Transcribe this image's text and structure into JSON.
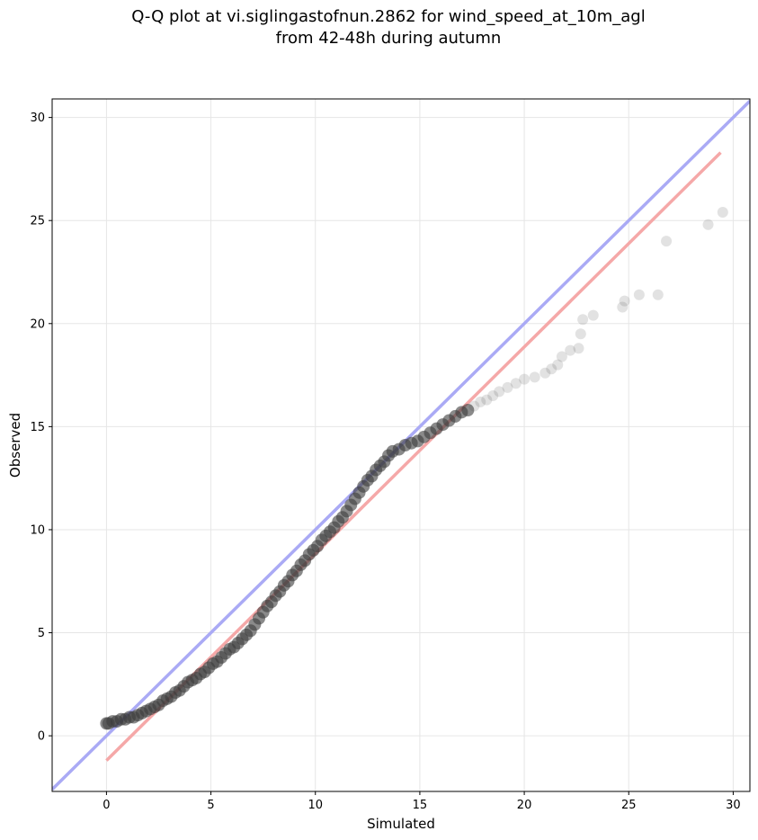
{
  "chart_data": {
    "type": "scatter",
    "title_lines": [
      "Q-Q plot at vi.siglingastofnun.2862 for wind_speed_at_10m_agl",
      "from 42-48h during autumn"
    ],
    "xlabel": "Simulated",
    "ylabel": "Observed",
    "xlim": [
      -2.6,
      30.8
    ],
    "ylim": [
      -2.7,
      30.9
    ],
    "xticks": [
      0,
      5,
      10,
      15,
      20,
      25,
      30
    ],
    "yticks": [
      0,
      5,
      10,
      15,
      20,
      25,
      30
    ],
    "grid": true,
    "reference_line": {
      "name": "1:1",
      "color": "#aaaaf5",
      "points": [
        [
          -2.6,
          -2.6
        ],
        [
          30.8,
          30.8
        ]
      ]
    },
    "fit_line": {
      "color": "#f5a8a8",
      "points": [
        [
          0.0,
          -1.2
        ],
        [
          29.4,
          28.3
        ]
      ]
    },
    "marker_color": "#3c3c3c",
    "series": [
      {
        "points": [
          [
            0.0,
            0.6
          ],
          [
            0.1,
            0.6
          ],
          [
            0.3,
            0.7
          ],
          [
            0.5,
            0.7
          ],
          [
            0.7,
            0.8
          ],
          [
            0.9,
            0.8
          ],
          [
            1.1,
            0.9
          ],
          [
            1.3,
            0.9
          ],
          [
            1.5,
            1.0
          ],
          [
            1.7,
            1.1
          ],
          [
            1.9,
            1.2
          ],
          [
            2.1,
            1.3
          ],
          [
            2.3,
            1.4
          ],
          [
            2.5,
            1.5
          ],
          [
            2.7,
            1.7
          ],
          [
            2.9,
            1.8
          ],
          [
            3.1,
            1.9
          ],
          [
            3.3,
            2.1
          ],
          [
            3.5,
            2.2
          ],
          [
            3.7,
            2.4
          ],
          [
            3.9,
            2.6
          ],
          [
            4.1,
            2.7
          ],
          [
            4.3,
            2.8
          ],
          [
            4.5,
            3.0
          ],
          [
            4.7,
            3.1
          ],
          [
            4.9,
            3.3
          ],
          [
            5.1,
            3.5
          ],
          [
            5.3,
            3.6
          ],
          [
            5.5,
            3.8
          ],
          [
            5.7,
            4.0
          ],
          [
            5.9,
            4.2
          ],
          [
            6.1,
            4.3
          ],
          [
            6.3,
            4.5
          ],
          [
            6.5,
            4.7
          ],
          [
            6.7,
            4.9
          ],
          [
            6.9,
            5.1
          ],
          [
            7.1,
            5.4
          ],
          [
            7.3,
            5.7
          ],
          [
            7.5,
            6.0
          ],
          [
            7.7,
            6.3
          ],
          [
            7.9,
            6.5
          ],
          [
            8.1,
            6.8
          ],
          [
            8.3,
            7.0
          ],
          [
            8.5,
            7.3
          ],
          [
            8.7,
            7.5
          ],
          [
            8.9,
            7.8
          ],
          [
            9.1,
            8.0
          ],
          [
            9.3,
            8.3
          ],
          [
            9.5,
            8.5
          ],
          [
            9.7,
            8.8
          ],
          [
            9.9,
            9.0
          ],
          [
            10.1,
            9.2
          ],
          [
            10.3,
            9.5
          ],
          [
            10.5,
            9.7
          ],
          [
            10.7,
            9.9
          ],
          [
            10.9,
            10.1
          ],
          [
            11.1,
            10.4
          ],
          [
            11.3,
            10.6
          ],
          [
            11.5,
            10.9
          ],
          [
            11.7,
            11.2
          ],
          [
            11.9,
            11.5
          ],
          [
            12.1,
            11.8
          ],
          [
            12.3,
            12.1
          ],
          [
            12.5,
            12.4
          ],
          [
            12.7,
            12.6
          ],
          [
            12.9,
            12.9
          ],
          [
            13.1,
            13.1
          ],
          [
            13.3,
            13.3
          ],
          [
            13.5,
            13.6
          ],
          [
            13.7,
            13.8
          ],
          [
            14.0,
            13.9
          ],
          [
            14.3,
            14.1
          ],
          [
            14.6,
            14.2
          ],
          [
            14.9,
            14.3
          ],
          [
            15.2,
            14.5
          ],
          [
            15.5,
            14.7
          ],
          [
            15.8,
            14.9
          ],
          [
            16.1,
            15.1
          ],
          [
            16.4,
            15.3
          ],
          [
            16.7,
            15.5
          ],
          [
            17.0,
            15.7
          ],
          [
            17.3,
            15.8
          ],
          [
            17.6,
            16.0
          ],
          [
            17.9,
            16.2
          ],
          [
            18.2,
            16.3
          ],
          [
            18.5,
            16.5
          ],
          [
            18.8,
            16.7
          ],
          [
            19.2,
            16.9
          ],
          [
            19.6,
            17.1
          ],
          [
            20.0,
            17.3
          ],
          [
            20.5,
            17.4
          ],
          [
            21.0,
            17.6
          ],
          [
            21.3,
            17.8
          ],
          [
            21.6,
            18.0
          ],
          [
            21.8,
            18.4
          ],
          [
            22.2,
            18.7
          ],
          [
            22.6,
            18.8
          ],
          [
            22.7,
            19.5
          ],
          [
            22.8,
            20.2
          ],
          [
            23.3,
            20.4
          ],
          [
            24.7,
            20.8
          ],
          [
            24.8,
            21.1
          ],
          [
            25.5,
            21.4
          ],
          [
            26.4,
            21.4
          ],
          [
            26.8,
            24.0
          ],
          [
            28.8,
            24.8
          ],
          [
            29.5,
            25.4
          ]
        ]
      }
    ]
  }
}
